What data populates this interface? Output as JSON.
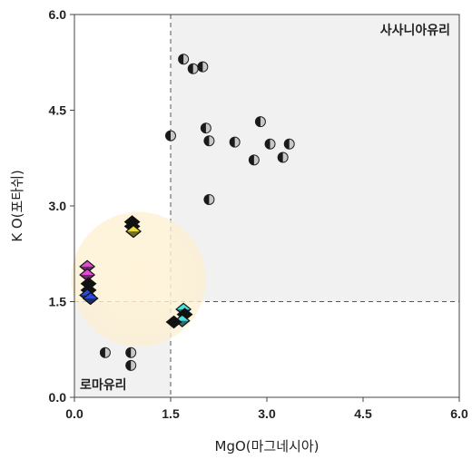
{
  "chart_data": {
    "type": "scatter",
    "title": "",
    "xlabel": "MgO(마그네시아)",
    "ylabel": "K O(포타쉬)",
    "xlim": [
      0,
      6
    ],
    "ylim": [
      0,
      6
    ],
    "xticks": [
      "0.0",
      "1.5",
      "3.0",
      "4.5",
      "6.0"
    ],
    "yticks": [
      "0.0",
      "1.5",
      "3.0",
      "4.5",
      "6.0"
    ],
    "grid": false,
    "region_labels": {
      "upper_right": "사사니아유리",
      "lower_left": "로마유리"
    },
    "thresholds": {
      "x": 1.5,
      "y": 1.5
    },
    "highlight_circle": {
      "cx": 1.0,
      "cy": 1.85,
      "r_x": 1.05
    },
    "series": [
      {
        "marker": "half-circle",
        "points": [
          [
            1.7,
            5.3
          ],
          [
            1.85,
            5.15
          ],
          [
            2.0,
            5.18
          ],
          [
            2.05,
            4.22
          ],
          [
            2.1,
            4.02
          ],
          [
            1.5,
            4.1
          ],
          [
            2.5,
            4.0
          ],
          [
            2.9,
            4.32
          ],
          [
            3.05,
            3.97
          ],
          [
            3.35,
            3.97
          ],
          [
            2.8,
            3.72
          ],
          [
            3.25,
            3.76
          ],
          [
            2.1,
            3.1
          ],
          [
            0.48,
            0.7
          ],
          [
            0.88,
            0.7
          ],
          [
            0.88,
            0.5
          ]
        ]
      },
      {
        "marker": "diamond",
        "colors": {
          "magenta": "#e24bd6",
          "blue": "#2c4bd8",
          "yellow": "#e9dc3c",
          "cyan": "#4de0e0",
          "black": "#111111"
        },
        "points": [
          [
            0.2,
            2.05,
            "magenta"
          ],
          [
            0.2,
            1.92,
            "magenta"
          ],
          [
            0.22,
            1.78,
            "black"
          ],
          [
            0.22,
            1.68,
            "black"
          ],
          [
            0.2,
            1.6,
            "blue"
          ],
          [
            0.25,
            1.55,
            "blue"
          ],
          [
            0.9,
            2.75,
            "black"
          ],
          [
            0.9,
            2.68,
            "black"
          ],
          [
            0.92,
            2.6,
            "yellow"
          ],
          [
            1.7,
            1.38,
            "cyan"
          ],
          [
            1.72,
            1.3,
            "black"
          ],
          [
            1.68,
            1.2,
            "cyan"
          ],
          [
            1.55,
            1.18,
            "black"
          ]
        ]
      }
    ]
  }
}
